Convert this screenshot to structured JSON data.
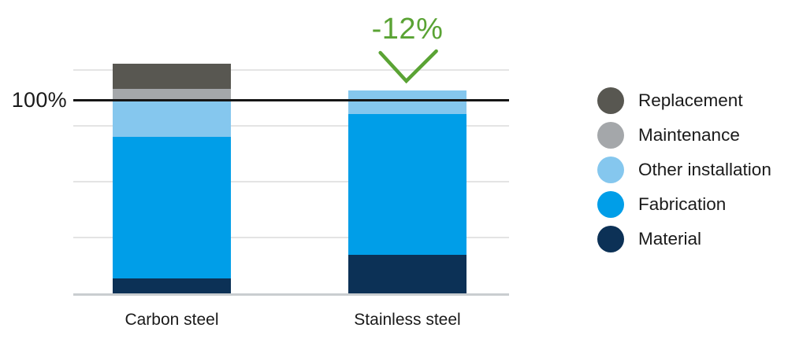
{
  "chart_data": {
    "type": "stacked-bar",
    "categories": [
      "Carbon steel",
      "Stainless steel"
    ],
    "series": [
      {
        "name": "Material",
        "color": "#0c3156",
        "values": [
          8,
          20
        ]
      },
      {
        "name": "Fabrication",
        "color": "#009ee8",
        "values": [
          73,
          73
        ]
      },
      {
        "name": "Other installation",
        "color": "#85c7ee",
        "values": [
          19,
          12
        ]
      },
      {
        "name": "Maintenance",
        "color": "#a4a7aa",
        "values": [
          6,
          0
        ]
      },
      {
        "name": "Replacement",
        "color": "#585751",
        "values": [
          13,
          0
        ]
      }
    ],
    "totals_pct": [
      119,
      105
    ],
    "reference_line": {
      "label": "100%",
      "value": 100
    },
    "annotation": {
      "text": "-12%",
      "target": "Stainless steel",
      "color": "#5aa334"
    },
    "legend_position": "right",
    "legend_order": [
      "Replacement",
      "Maintenance",
      "Other installation",
      "Fabrication",
      "Material"
    ],
    "grid": true,
    "unit": "percent",
    "ylim_pct": [
      0,
      122
    ]
  },
  "colors": {
    "text": "#1a1a1a",
    "gridline": "#e4e4e4",
    "axis_line": "#c9cdd0",
    "reference_line": "#161616",
    "background": "#ffffff"
  }
}
